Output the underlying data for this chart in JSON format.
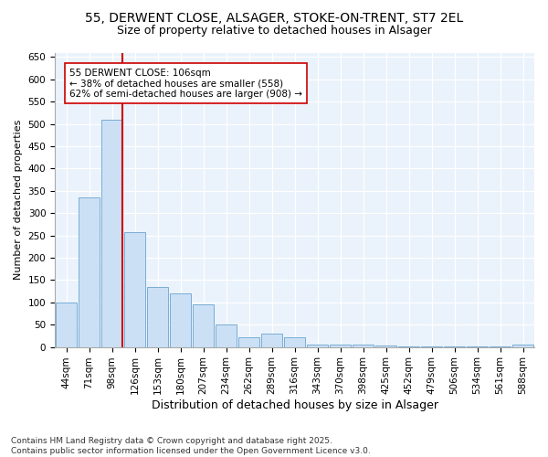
{
  "title1": "55, DERWENT CLOSE, ALSAGER, STOKE-ON-TRENT, ST7 2EL",
  "title2": "Size of property relative to detached houses in Alsager",
  "xlabel": "Distribution of detached houses by size in Alsager",
  "ylabel": "Number of detached properties",
  "categories": [
    "44sqm",
    "71sqm",
    "98sqm",
    "126sqm",
    "153sqm",
    "180sqm",
    "207sqm",
    "234sqm",
    "262sqm",
    "289sqm",
    "316sqm",
    "343sqm",
    "370sqm",
    "398sqm",
    "425sqm",
    "452sqm",
    "479sqm",
    "506sqm",
    "534sqm",
    "561sqm",
    "588sqm"
  ],
  "values": [
    100,
    335,
    510,
    258,
    135,
    120,
    95,
    50,
    22,
    30,
    22,
    5,
    5,
    5,
    3,
    2,
    2,
    2,
    2,
    2,
    5
  ],
  "bar_color": "#cce0f5",
  "bar_edge_color": "#7aadd4",
  "vline_color": "#cc0000",
  "annotation_text": "55 DERWENT CLOSE: 106sqm\n← 38% of detached houses are smaller (558)\n62% of semi-detached houses are larger (908) →",
  "footer": "Contains HM Land Registry data © Crown copyright and database right 2025.\nContains public sector information licensed under the Open Government Licence v3.0.",
  "ylim": [
    0,
    660
  ],
  "bg_color": "#eaf2fb",
  "fig_bg_color": "#ffffff",
  "title_fontsize": 10,
  "subtitle_fontsize": 9,
  "ylabel_fontsize": 8,
  "xlabel_fontsize": 9,
  "tick_fontsize": 7.5,
  "annot_fontsize": 7.5,
  "footer_fontsize": 6.5
}
